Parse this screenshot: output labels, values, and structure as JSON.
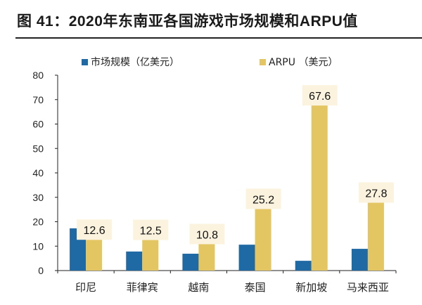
{
  "title": "图 41：2020年东南亚各国游戏市场规模和ARPU值",
  "chart_data": {
    "type": "bar",
    "title": "图 41：2020年东南亚各国游戏市场规模和ARPU值",
    "categories": [
      "印尼",
      "菲律宾",
      "越南",
      "泰国",
      "新加坡",
      "马来西亚"
    ],
    "series": [
      {
        "name": "市场规模（亿美元）",
        "color": "#1f6aa5",
        "values": [
          17.3,
          7.8,
          6.9,
          10.6,
          4.0,
          8.9
        ]
      },
      {
        "name": "ARPU （美元）",
        "color": "#e3c661",
        "values": [
          12.6,
          12.5,
          10.8,
          25.2,
          67.6,
          27.8
        ],
        "data_labels": [
          "12.6",
          "12.5",
          "10.8",
          "25.2",
          "67.6",
          "27.8"
        ]
      }
    ],
    "ylim": [
      0,
      80
    ],
    "yticks": [
      "0",
      "10",
      "20",
      "30",
      "40",
      "50",
      "60",
      "70",
      "80"
    ],
    "grid": false,
    "legend": "top",
    "xlabel": "",
    "ylabel": ""
  }
}
